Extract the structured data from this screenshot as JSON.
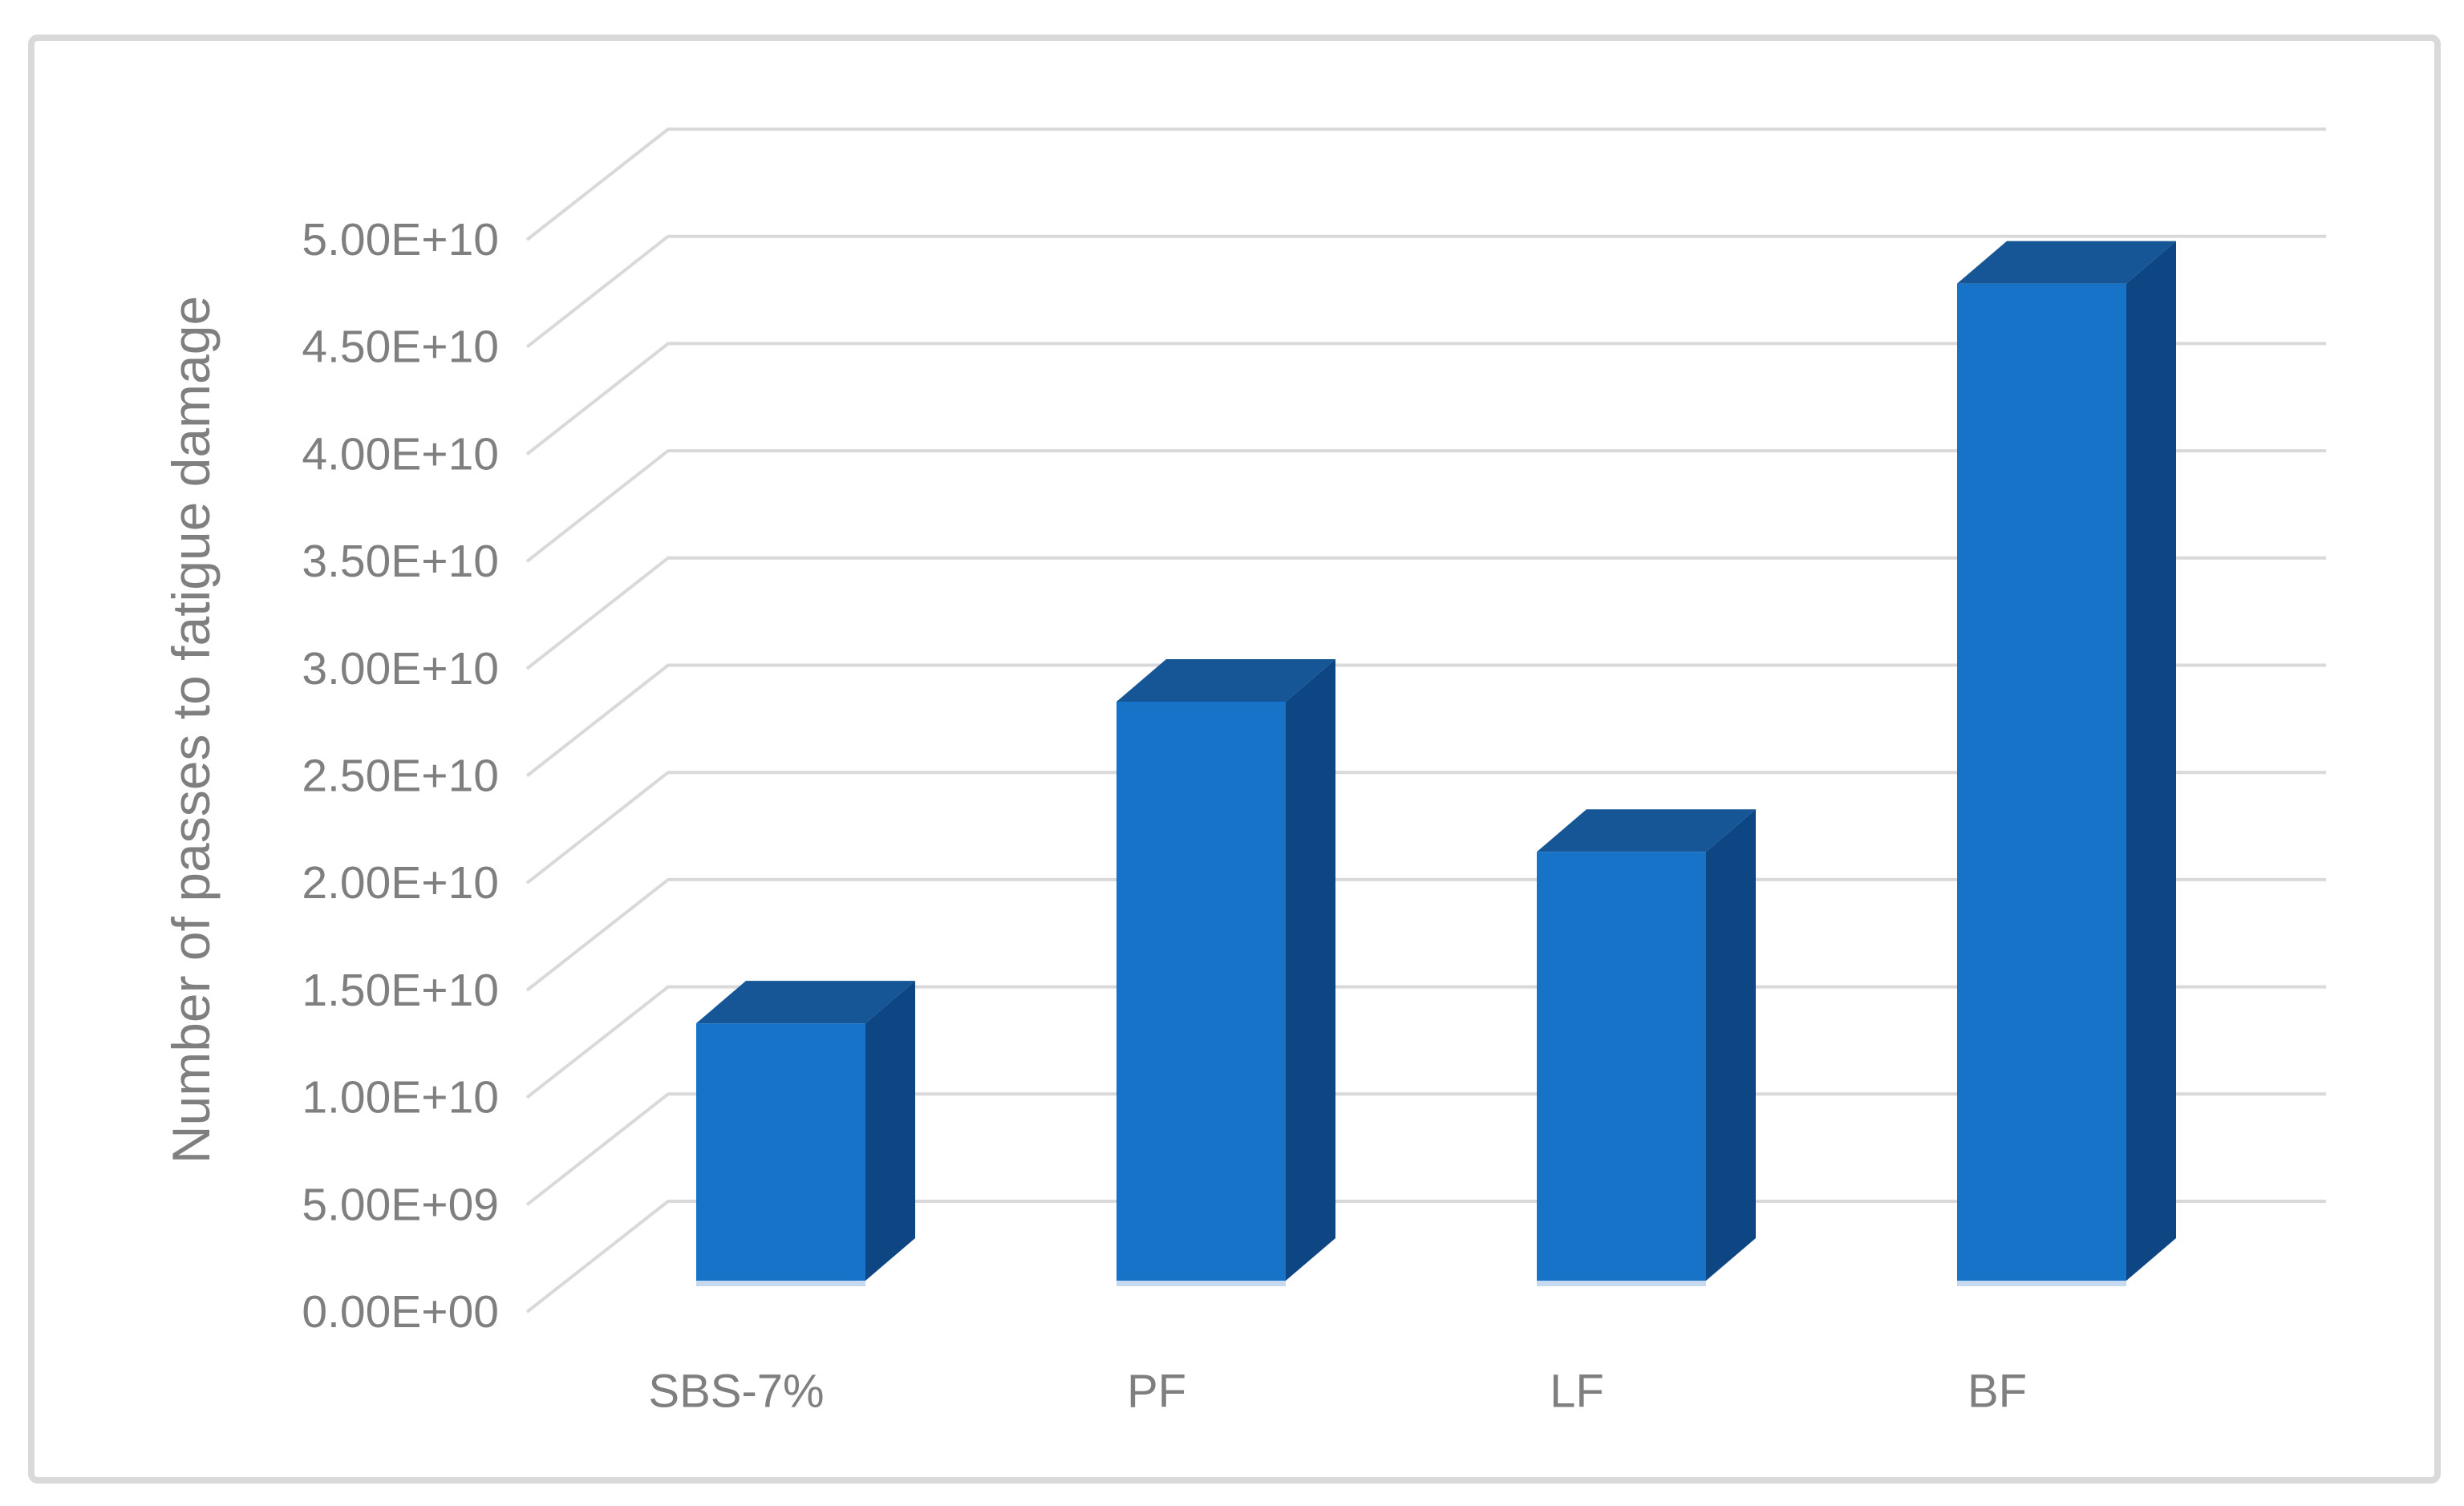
{
  "figure": {
    "background": "#FFFFFF",
    "border_color": "#D9D9D9"
  },
  "chart_data": {
    "type": "bar",
    "variant": "3d-column",
    "title": "",
    "xlabel": "",
    "ylabel": "Number of passes to fatigue damage",
    "categories": [
      "SBS-7%",
      "PF",
      "LF",
      "BF"
    ],
    "series": [
      {
        "name": "Number of passes to fatigue damage",
        "values": [
          12000000000,
          27000000000,
          20000000000,
          46500000000
        ]
      }
    ],
    "ylim": [
      0,
      50000000000
    ],
    "ytick_step": 5000000000,
    "ytick_labels": [
      "0.00E+00",
      "5.00E+09",
      "1.00E+10",
      "1.50E+10",
      "2.00E+10",
      "2.50E+10",
      "3.00E+10",
      "3.50E+10",
      "4.00E+10",
      "4.50E+10",
      "5.00E+10"
    ],
    "grid": true,
    "legend": false,
    "colors": {
      "bar_front": "#1673C8",
      "bar_top": "#165696",
      "bar_side": "#0E4583",
      "bar_base_highlight": "#BCD2EC",
      "gridline": "#D9D9D9",
      "text": "#7F7F7F"
    }
  }
}
